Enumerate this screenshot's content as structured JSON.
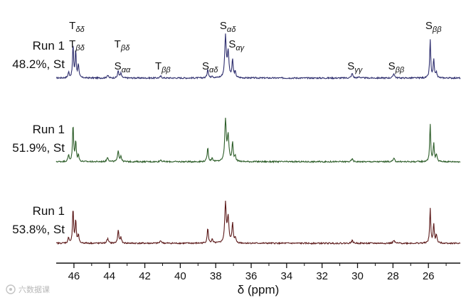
{
  "chart_data": {
    "type": "line",
    "xlabel": "δ (ppm)",
    "xlim": [
      47,
      24.2
    ],
    "x_reversed": true,
    "xticks": [
      46,
      44,
      42,
      40,
      38,
      36,
      34,
      32,
      30,
      28,
      26
    ],
    "grid": false,
    "legend": "none",
    "series": [
      {
        "name_lines": [
          "Run 1",
          "48.2%, St"
        ],
        "color": "#2e2e6e",
        "peaks": [
          {
            "x": 46.3,
            "h": 0.12,
            "w": 0.04
          },
          {
            "x": 46.05,
            "h": 0.7,
            "w": 0.035
          },
          {
            "x": 45.9,
            "h": 0.58,
            "w": 0.035
          },
          {
            "x": 45.75,
            "h": 0.3,
            "w": 0.035
          },
          {
            "x": 44.1,
            "h": 0.06,
            "w": 0.05
          },
          {
            "x": 43.5,
            "h": 0.16,
            "w": 0.04
          },
          {
            "x": 43.35,
            "h": 0.1,
            "w": 0.04
          },
          {
            "x": 41.1,
            "h": 0.04,
            "w": 0.05
          },
          {
            "x": 38.45,
            "h": 0.2,
            "w": 0.04
          },
          {
            "x": 38.2,
            "h": 0.05,
            "w": 0.04
          },
          {
            "x": 37.45,
            "h": 0.9,
            "w": 0.05
          },
          {
            "x": 37.3,
            "h": 0.55,
            "w": 0.05
          },
          {
            "x": 37.05,
            "h": 0.38,
            "w": 0.04
          },
          {
            "x": 36.9,
            "h": 0.12,
            "w": 0.04
          },
          {
            "x": 30.3,
            "h": 0.1,
            "w": 0.05
          },
          {
            "x": 29.9,
            "h": 0.03,
            "w": 0.05
          },
          {
            "x": 27.95,
            "h": 0.1,
            "w": 0.05
          },
          {
            "x": 25.9,
            "h": 0.82,
            "w": 0.035
          },
          {
            "x": 25.7,
            "h": 0.4,
            "w": 0.035
          },
          {
            "x": 25.55,
            "h": 0.12,
            "w": 0.04
          }
        ]
      },
      {
        "name_lines": [
          "Run 1",
          "51.9%, St"
        ],
        "color": "#2e5e2a",
        "peaks": [
          {
            "x": 46.3,
            "h": 0.14,
            "w": 0.04
          },
          {
            "x": 46.05,
            "h": 0.8,
            "w": 0.035
          },
          {
            "x": 45.9,
            "h": 0.45,
            "w": 0.035
          },
          {
            "x": 45.75,
            "h": 0.15,
            "w": 0.035
          },
          {
            "x": 44.1,
            "h": 0.1,
            "w": 0.05
          },
          {
            "x": 43.5,
            "h": 0.25,
            "w": 0.04
          },
          {
            "x": 43.35,
            "h": 0.12,
            "w": 0.04
          },
          {
            "x": 41.1,
            "h": 0.04,
            "w": 0.05
          },
          {
            "x": 38.45,
            "h": 0.3,
            "w": 0.04
          },
          {
            "x": 38.2,
            "h": 0.08,
            "w": 0.04
          },
          {
            "x": 37.45,
            "h": 0.9,
            "w": 0.05
          },
          {
            "x": 37.3,
            "h": 0.55,
            "w": 0.05
          },
          {
            "x": 37.05,
            "h": 0.4,
            "w": 0.04
          },
          {
            "x": 36.9,
            "h": 0.12,
            "w": 0.04
          },
          {
            "x": 30.3,
            "h": 0.06,
            "w": 0.05
          },
          {
            "x": 27.95,
            "h": 0.07,
            "w": 0.05
          },
          {
            "x": 25.9,
            "h": 0.8,
            "w": 0.035
          },
          {
            "x": 25.7,
            "h": 0.4,
            "w": 0.035
          },
          {
            "x": 25.55,
            "h": 0.15,
            "w": 0.04
          }
        ]
      },
      {
        "name_lines": [
          "Run 1",
          "53.8%, St"
        ],
        "color": "#5c1a1a",
        "peaks": [
          {
            "x": 46.3,
            "h": 0.12,
            "w": 0.04
          },
          {
            "x": 46.05,
            "h": 0.75,
            "w": 0.035
          },
          {
            "x": 45.9,
            "h": 0.5,
            "w": 0.035
          },
          {
            "x": 45.75,
            "h": 0.18,
            "w": 0.035
          },
          {
            "x": 44.1,
            "h": 0.1,
            "w": 0.05
          },
          {
            "x": 43.5,
            "h": 0.28,
            "w": 0.04
          },
          {
            "x": 43.35,
            "h": 0.12,
            "w": 0.04
          },
          {
            "x": 41.1,
            "h": 0.06,
            "w": 0.05
          },
          {
            "x": 38.45,
            "h": 0.32,
            "w": 0.04
          },
          {
            "x": 38.2,
            "h": 0.08,
            "w": 0.04
          },
          {
            "x": 37.45,
            "h": 0.85,
            "w": 0.05
          },
          {
            "x": 37.3,
            "h": 0.55,
            "w": 0.05
          },
          {
            "x": 37.05,
            "h": 0.42,
            "w": 0.04
          },
          {
            "x": 36.9,
            "h": 0.12,
            "w": 0.04
          },
          {
            "x": 30.3,
            "h": 0.06,
            "w": 0.05
          },
          {
            "x": 27.95,
            "h": 0.06,
            "w": 0.05
          },
          {
            "x": 25.9,
            "h": 0.75,
            "w": 0.035
          },
          {
            "x": 25.7,
            "h": 0.42,
            "w": 0.035
          },
          {
            "x": 25.55,
            "h": 0.18,
            "w": 0.04
          }
        ]
      }
    ],
    "annotations": [
      {
        "main": "T",
        "sub": "δδ",
        "x": 45.95,
        "level": 0
      },
      {
        "main": "T",
        "sub": "βδ",
        "x": 45.95,
        "level": 1
      },
      {
        "main": "T",
        "sub": "βδ",
        "x": 43.4,
        "level": 1
      },
      {
        "main": "S",
        "sub": "αα",
        "x": 43.4,
        "level": 2
      },
      {
        "main": "T",
        "sub": "ββ",
        "x": 41.1,
        "level": 2
      },
      {
        "main": "S",
        "sub": "αδ",
        "x": 38.45,
        "level": 2
      },
      {
        "main": "S",
        "sub": "αδ",
        "x": 37.45,
        "level": 0
      },
      {
        "main": "S",
        "sub": "αγ",
        "x": 36.95,
        "level": 1
      },
      {
        "main": "S",
        "sub": "γγ",
        "x": 30.25,
        "level": 2
      },
      {
        "main": "S",
        "sub": "ββ",
        "x": 27.95,
        "level": 2
      },
      {
        "main": "S",
        "sub": "ββ",
        "x": 25.85,
        "level": 0
      }
    ]
  },
  "watermark": "六数据课"
}
